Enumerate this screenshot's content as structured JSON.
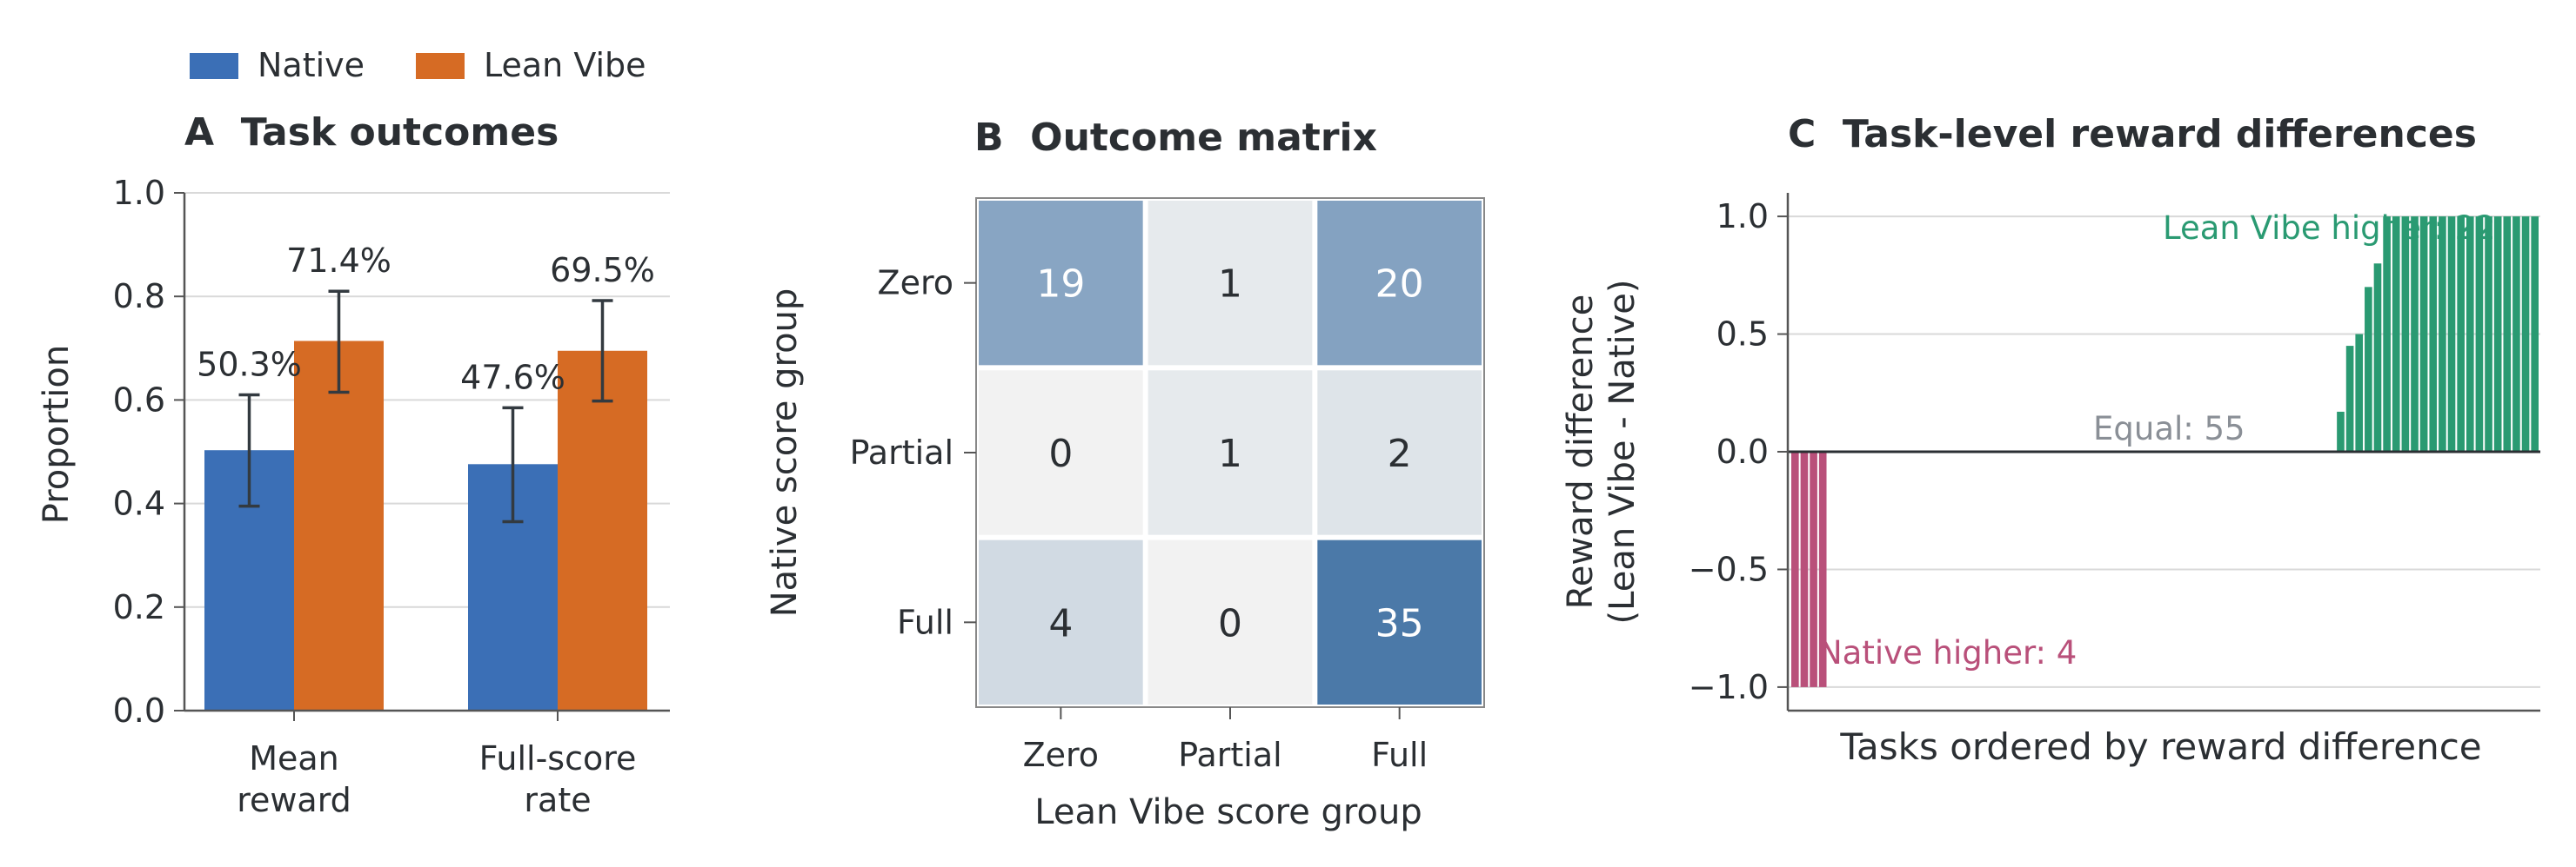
{
  "colors": {
    "native": "#3b6fb6",
    "lean_vibe": "#d66b24",
    "text": "#2b2f33",
    "grid": "#d9d9d9",
    "lean_vibe_higher": "#2a9a72",
    "native_higher": "#b9507a",
    "equal": "#8a8f96",
    "heat_low": "#f2f2f2",
    "heat_high": "#4b79a8"
  },
  "legend": {
    "items": [
      {
        "label": "Native",
        "color": "#3b6fb6"
      },
      {
        "label": "Lean Vibe",
        "color": "#d66b24"
      }
    ]
  },
  "chart_data": [
    {
      "panel": "A",
      "type": "bar",
      "title": "A  Task outcomes",
      "ylabel": "Proportion",
      "ylim": [
        0,
        1.0
      ],
      "yticks": [
        "0.0",
        "0.2",
        "0.4",
        "0.6",
        "0.8",
        "1.0"
      ],
      "categories": [
        "Mean\nreward",
        "Full-score\nrate"
      ],
      "series": [
        {
          "name": "Native",
          "values": [
            0.503,
            0.476
          ],
          "err_low": [
            0.395,
            0.365
          ],
          "err_high": [
            0.61,
            0.585
          ],
          "labels": [
            "50.3%",
            "47.6%"
          ]
        },
        {
          "name": "Lean Vibe",
          "values": [
            0.714,
            0.695
          ],
          "err_low": [
            0.615,
            0.598
          ],
          "err_high": [
            0.81,
            0.792
          ],
          "labels": [
            "71.4%",
            "69.5%"
          ]
        }
      ],
      "grid": "y"
    },
    {
      "panel": "B",
      "type": "heatmap",
      "title": "B  Outcome matrix",
      "xlabel": "Lean Vibe score group",
      "ylabel": "Native score group",
      "x_categories": [
        "Zero",
        "Partial",
        "Full"
      ],
      "y_categories": [
        "Zero",
        "Partial",
        "Full"
      ],
      "values": [
        [
          19,
          1,
          20
        ],
        [
          0,
          1,
          2
        ],
        [
          4,
          0,
          35
        ]
      ]
    },
    {
      "panel": "C",
      "type": "bar",
      "title": "C  Task-level reward differences",
      "xlabel": "Tasks ordered by reward difference",
      "ylabel": "Reward difference\n(Lean Vibe - Native)",
      "ylim": [
        -1.1,
        1.1
      ],
      "yticks": [
        "1.0",
        "0.5",
        "0.0",
        "−0.5",
        "−1.0"
      ],
      "ytick_values": [
        1.0,
        0.5,
        0.0,
        -0.5,
        -1.0
      ],
      "native_higher": {
        "values": [
          -1.0,
          -1.0,
          -1.0,
          -1.0
        ],
        "label": "Native higher: 4"
      },
      "equal": {
        "count": 55,
        "label": "Equal: 55"
      },
      "lean_vibe_higher": {
        "values": [
          0.17,
          0.45,
          0.5,
          0.7,
          0.8,
          1.0,
          1.0,
          1.0,
          1.0,
          1.0,
          1.0,
          1.0,
          1.0,
          1.0,
          1.0,
          1.0,
          1.0,
          1.0,
          1.0,
          1.0,
          1.0,
          1.0
        ],
        "label": "Lean Vibe higher: 22"
      }
    }
  ]
}
